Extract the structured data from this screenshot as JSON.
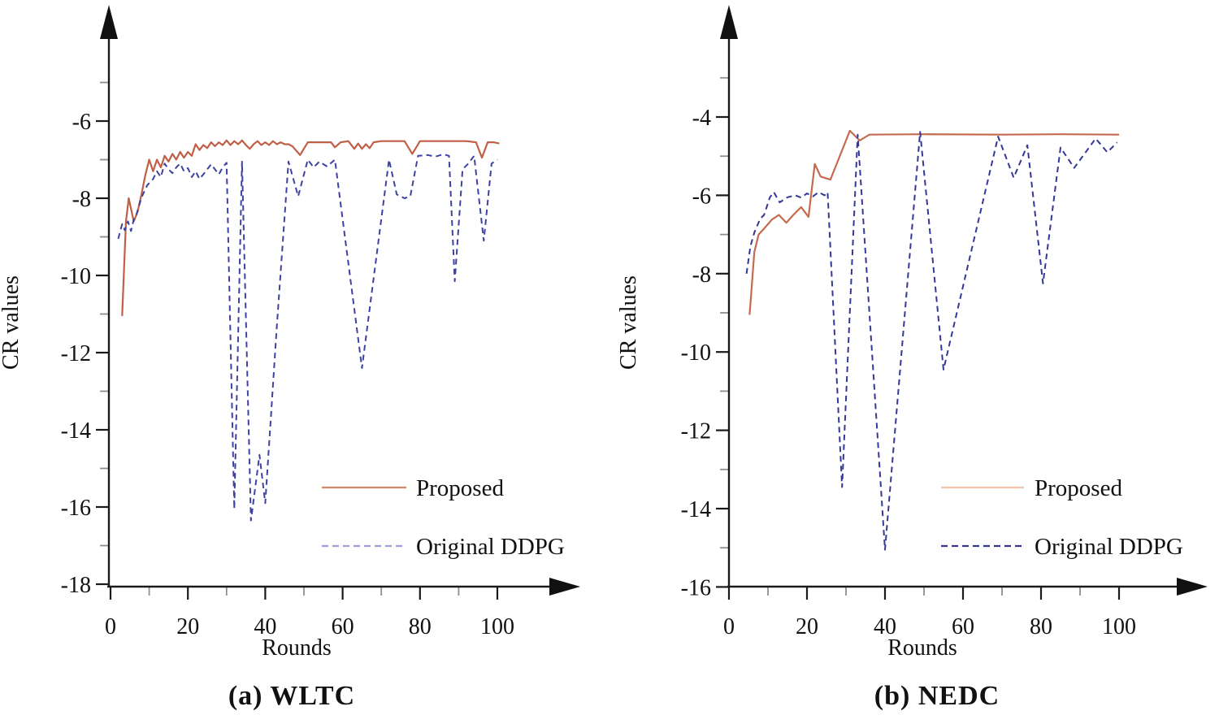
{
  "page": {
    "background": "#ffffff",
    "axis_color": "#1a1a1a",
    "minor_tick_color": "#8f8f8f"
  },
  "chart_data": [
    {
      "id": "wltc",
      "type": "line",
      "caption": "(a) WLTC",
      "xlabel": "Rounds",
      "ylabel": "CR values",
      "xlim": [
        0,
        115
      ],
      "ylim": [
        -18,
        -4
      ],
      "grid": false,
      "legend_position": "lower-right-inside",
      "x_ticks_major": [
        0,
        20,
        40,
        60,
        80,
        100
      ],
      "x_tick_labels": [
        "0",
        "20",
        "40",
        "60",
        "80",
        "100"
      ],
      "x_ticks_minor": [
        10,
        30,
        50,
        70,
        90
      ],
      "y_ticks_major": [
        -6,
        -8,
        -10,
        -12,
        -14,
        -16,
        -18
      ],
      "y_tick_labels": [
        "-6",
        "-8",
        "-10",
        "-12",
        "-14",
        "-16",
        "-18"
      ],
      "y_ticks_minor": [
        -5,
        -7,
        -9,
        -11,
        -13,
        -15,
        -17
      ],
      "legend": [
        {
          "label": "Proposed",
          "style": "solid",
          "sample_color": "#cd8a6f"
        },
        {
          "label": "Original DDPG",
          "style": "dashed",
          "sample_color": "#9ba0d8"
        }
      ],
      "series": [
        {
          "name": "Proposed",
          "style": "solid",
          "color": "#c05f46",
          "points": [
            [
              3,
              -11.05
            ],
            [
              4,
              -8.6
            ],
            [
              4.7,
              -8.0
            ],
            [
              6,
              -8.6
            ],
            [
              7,
              -8.35
            ],
            [
              8,
              -7.9
            ],
            [
              9,
              -7.4
            ],
            [
              10,
              -7.0
            ],
            [
              11,
              -7.3
            ],
            [
              12,
              -7.0
            ],
            [
              13,
              -7.2
            ],
            [
              14,
              -6.9
            ],
            [
              15,
              -7.05
            ],
            [
              16,
              -6.85
            ],
            [
              17,
              -7.0
            ],
            [
              18,
              -6.8
            ],
            [
              19,
              -6.95
            ],
            [
              20,
              -6.8
            ],
            [
              21,
              -6.9
            ],
            [
              22,
              -6.6
            ],
            [
              23,
              -6.75
            ],
            [
              24,
              -6.62
            ],
            [
              25,
              -6.7
            ],
            [
              26,
              -6.55
            ],
            [
              27,
              -6.65
            ],
            [
              28,
              -6.55
            ],
            [
              29,
              -6.62
            ],
            [
              30,
              -6.5
            ],
            [
              31,
              -6.62
            ],
            [
              32,
              -6.52
            ],
            [
              33,
              -6.6
            ],
            [
              34,
              -6.5
            ],
            [
              35,
              -6.62
            ],
            [
              36,
              -6.72
            ],
            [
              37,
              -6.6
            ],
            [
              38,
              -6.52
            ],
            [
              39,
              -6.62
            ],
            [
              40,
              -6.55
            ],
            [
              41,
              -6.62
            ],
            [
              42,
              -6.52
            ],
            [
              43,
              -6.6
            ],
            [
              44,
              -6.55
            ],
            [
              45,
              -6.6
            ],
            [
              46,
              -6.6
            ],
            [
              47,
              -6.65
            ],
            [
              49,
              -6.88
            ],
            [
              51,
              -6.55
            ],
            [
              54,
              -6.55
            ],
            [
              57,
              -6.55
            ],
            [
              58,
              -6.68
            ],
            [
              59.5,
              -6.55
            ],
            [
              61.5,
              -6.52
            ],
            [
              63,
              -6.72
            ],
            [
              64,
              -6.58
            ],
            [
              65,
              -6.72
            ],
            [
              66,
              -6.6
            ],
            [
              67,
              -6.7
            ],
            [
              68,
              -6.55
            ],
            [
              70,
              -6.52
            ],
            [
              73,
              -6.52
            ],
            [
              76,
              -6.52
            ],
            [
              78,
              -6.85
            ],
            [
              80,
              -6.52
            ],
            [
              83,
              -6.52
            ],
            [
              86,
              -6.52
            ],
            [
              89,
              -6.52
            ],
            [
              92,
              -6.52
            ],
            [
              94.5,
              -6.55
            ],
            [
              96,
              -6.95
            ],
            [
              97.5,
              -6.55
            ],
            [
              99,
              -6.55
            ],
            [
              100.5,
              -6.58
            ]
          ]
        },
        {
          "name": "Original DDPG",
          "style": "dashed",
          "color": "#3d42a2",
          "points": [
            [
              2,
              -9.05
            ],
            [
              3,
              -8.67
            ],
            [
              3.7,
              -8.83
            ],
            [
              4.5,
              -8.6
            ],
            [
              5.3,
              -8.85
            ],
            [
              6,
              -8.55
            ],
            [
              6.7,
              -8.42
            ],
            [
              8,
              -7.98
            ],
            [
              9.5,
              -7.66
            ],
            [
              11,
              -7.5
            ],
            [
              12,
              -7.3
            ],
            [
              13,
              -7.45
            ],
            [
              14,
              -7.1
            ],
            [
              15,
              -7.25
            ],
            [
              16,
              -7.35
            ],
            [
              17,
              -7.2
            ],
            [
              18,
              -7.1
            ],
            [
              19,
              -7.3
            ],
            [
              20,
              -7.22
            ],
            [
              21,
              -7.45
            ],
            [
              22,
              -7.3
            ],
            [
              23,
              -7.5
            ],
            [
              24,
              -7.38
            ],
            [
              25,
              -7.25
            ],
            [
              26,
              -7.12
            ],
            [
              27,
              -7.25
            ],
            [
              28,
              -7.38
            ],
            [
              29,
              -7.2
            ],
            [
              30,
              -7.08
            ],
            [
              32,
              -16.05
            ],
            [
              34,
              -7.05
            ],
            [
              36.3,
              -16.35
            ],
            [
              38.5,
              -14.65
            ],
            [
              40,
              -15.9
            ],
            [
              43,
              -11.3
            ],
            [
              46,
              -7.05
            ],
            [
              48.5,
              -7.95
            ],
            [
              51,
              -7.0
            ],
            [
              52.5,
              -7.2
            ],
            [
              54,
              -7.05
            ],
            [
              56,
              -7.18
            ],
            [
              58,
              -7.0
            ],
            [
              65,
              -12.4
            ],
            [
              72,
              -7.0
            ],
            [
              74,
              -7.9
            ],
            [
              76,
              -8.0
            ],
            [
              77.5,
              -7.95
            ],
            [
              79.5,
              -6.9
            ],
            [
              82,
              -6.88
            ],
            [
              84,
              -6.92
            ],
            [
              86,
              -6.86
            ],
            [
              87.5,
              -6.9
            ],
            [
              89,
              -10.15
            ],
            [
              91,
              -7.25
            ],
            [
              92.5,
              -7.1
            ],
            [
              94,
              -6.9
            ],
            [
              96.5,
              -9.1
            ],
            [
              98.5,
              -7.1
            ],
            [
              100,
              -7.0
            ]
          ]
        }
      ]
    },
    {
      "id": "nedc",
      "type": "line",
      "caption": "(b) NEDC",
      "xlabel": "Rounds",
      "ylabel": "CR values",
      "xlim": [
        0,
        115
      ],
      "ylim": [
        -16,
        -3
      ],
      "grid": false,
      "legend_position": "lower-right-inside",
      "x_ticks_major": [
        0,
        20,
        40,
        60,
        80,
        100
      ],
      "x_tick_labels": [
        "0",
        "20",
        "40",
        "60",
        "80",
        "100"
      ],
      "x_ticks_minor": [
        10,
        30,
        50,
        70,
        90
      ],
      "y_ticks_major": [
        -4,
        -6,
        -8,
        -10,
        -12,
        -14,
        -16
      ],
      "y_tick_labels": [
        "-4",
        "-6",
        "-8",
        "-10",
        "-12",
        "-14",
        "-16"
      ],
      "y_ticks_minor": [
        -3,
        -5,
        -7,
        -9,
        -11,
        -13,
        -15
      ],
      "legend": [
        {
          "label": "Proposed",
          "style": "solid",
          "sample_color": "#f2c6ae"
        },
        {
          "label": "Original DDPG",
          "style": "dashed",
          "sample_color": "#32368c"
        }
      ],
      "series": [
        {
          "name": "Proposed",
          "style": "solid",
          "color": "#c46a4e",
          "points": [
            [
              5.3,
              -9.05
            ],
            [
              6.5,
              -7.45
            ],
            [
              7.6,
              -7.0
            ],
            [
              9,
              -6.85
            ],
            [
              11,
              -6.62
            ],
            [
              12.8,
              -6.5
            ],
            [
              14.7,
              -6.7
            ],
            [
              16.5,
              -6.5
            ],
            [
              18.5,
              -6.3
            ],
            [
              20.4,
              -6.55
            ],
            [
              22,
              -5.2
            ],
            [
              23.5,
              -5.52
            ],
            [
              26,
              -5.6
            ],
            [
              31,
              -4.35
            ],
            [
              33.5,
              -4.6
            ],
            [
              36,
              -4.45
            ],
            [
              50,
              -4.44
            ],
            [
              70,
              -4.45
            ],
            [
              85,
              -4.44
            ],
            [
              100,
              -4.45
            ]
          ]
        },
        {
          "name": "Original DDPG",
          "style": "dashed",
          "color": "#333896",
          "points": [
            [
              4.5,
              -8.0
            ],
            [
              5.5,
              -7.3
            ],
            [
              6.5,
              -6.95
            ],
            [
              8,
              -6.6
            ],
            [
              9,
              -6.5
            ],
            [
              10.5,
              -6.05
            ],
            [
              11.5,
              -5.92
            ],
            [
              13,
              -6.18
            ],
            [
              15,
              -6.05
            ],
            [
              17,
              -6.0
            ],
            [
              18.5,
              -6.06
            ],
            [
              20,
              -5.95
            ],
            [
              21.5,
              -6.03
            ],
            [
              23,
              -5.92
            ],
            [
              24.5,
              -6.0
            ],
            [
              25.3,
              -5.92
            ],
            [
              29,
              -13.45
            ],
            [
              33,
              -4.45
            ],
            [
              40,
              -15.05
            ],
            [
              49,
              -4.38
            ],
            [
              55,
              -10.45
            ],
            [
              69,
              -4.5
            ],
            [
              73,
              -5.55
            ],
            [
              76.5,
              -4.72
            ],
            [
              80.5,
              -8.25
            ],
            [
              85,
              -4.78
            ],
            [
              88.5,
              -5.3
            ],
            [
              94,
              -4.55
            ],
            [
              97,
              -4.9
            ],
            [
              99.5,
              -4.65
            ]
          ]
        }
      ]
    }
  ]
}
